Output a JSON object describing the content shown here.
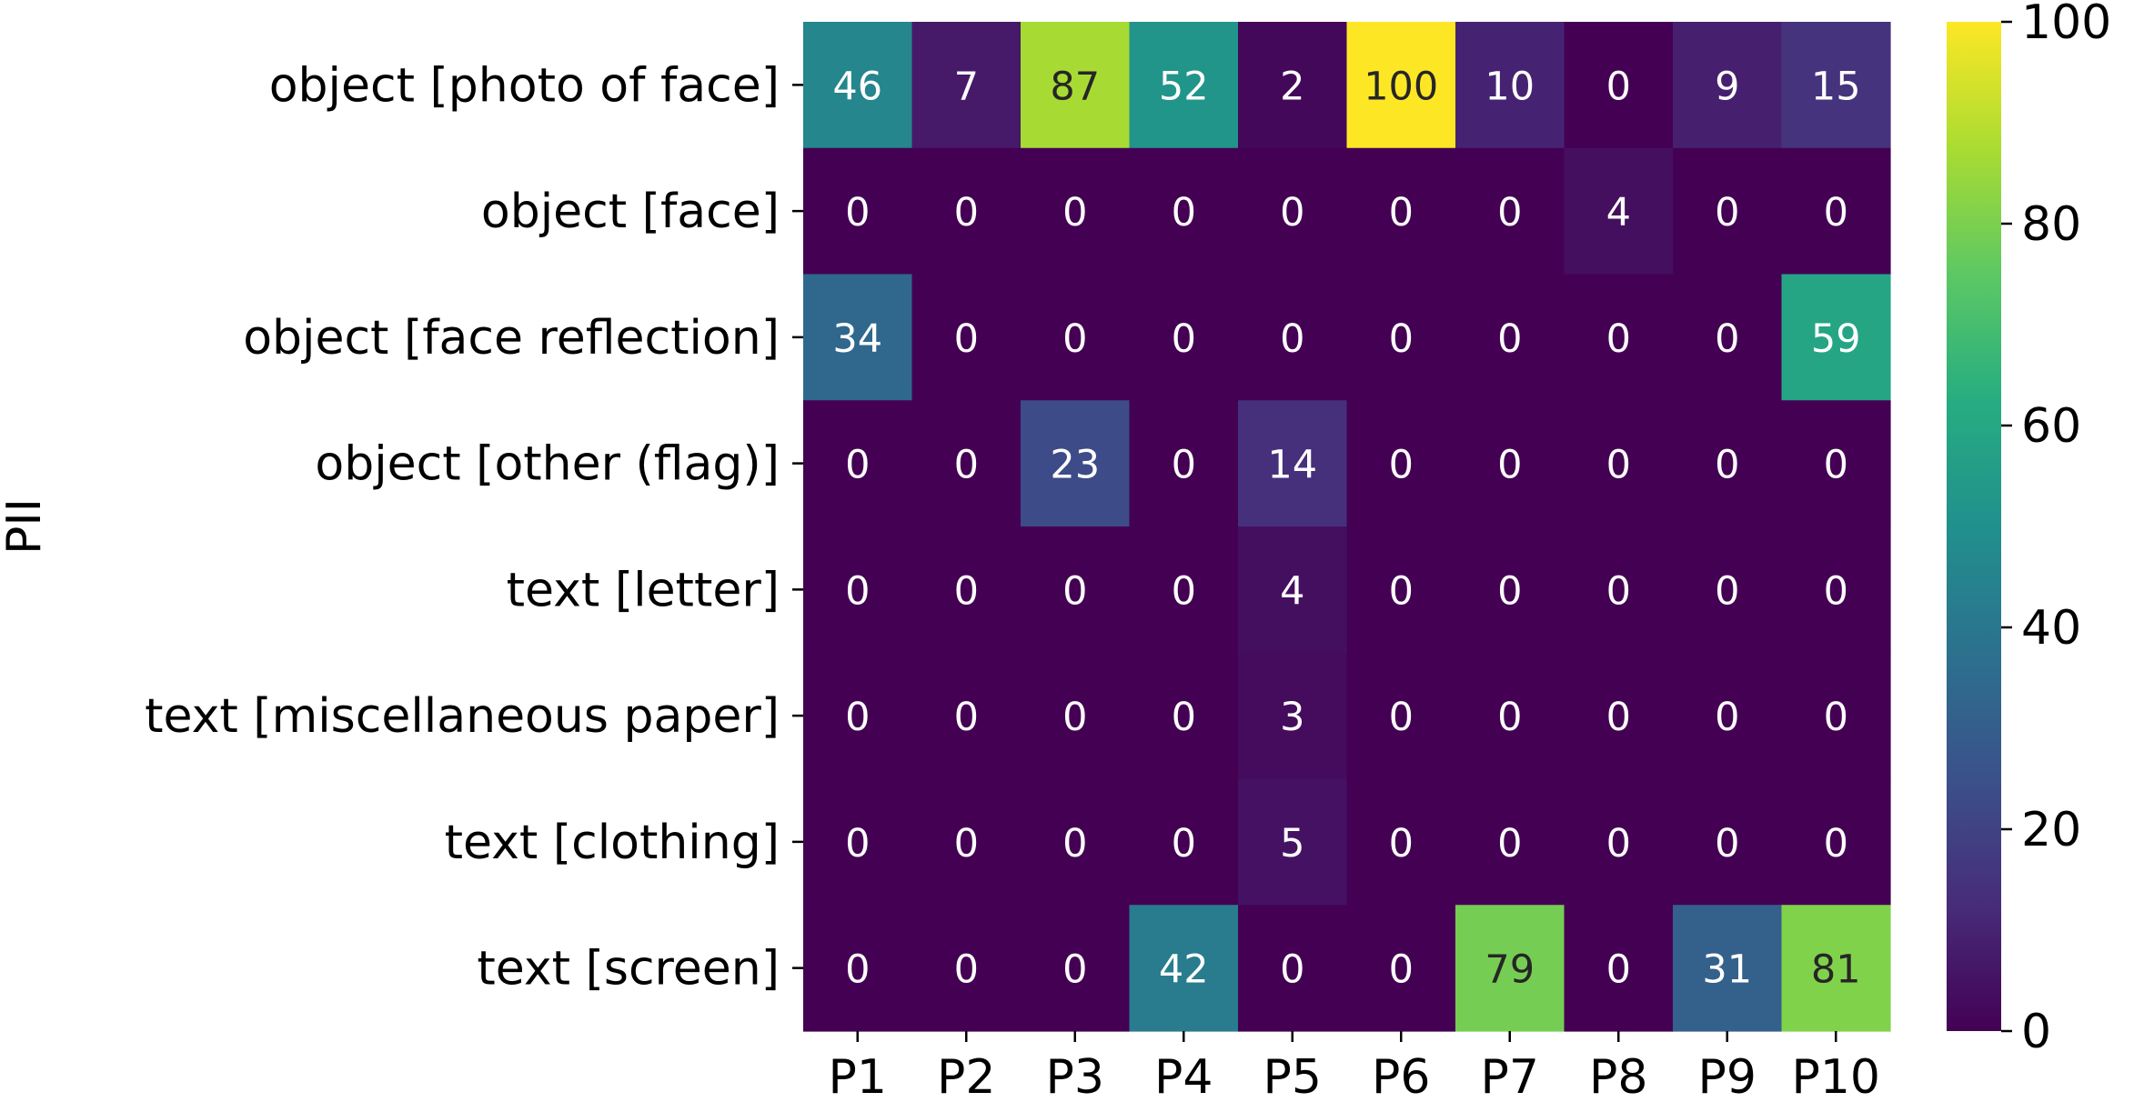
{
  "chart_data": {
    "type": "heatmap",
    "title": "",
    "xlabel": "",
    "ylabel": "PII",
    "x_categories": [
      "P1",
      "P2",
      "P3",
      "P4",
      "P5",
      "P6",
      "P7",
      "P8",
      "P9",
      "P10"
    ],
    "y_categories": [
      "object [photo of face]",
      "object [face]",
      "object [face reflection]",
      "object [other (flag)]",
      "text [letter]",
      "text [miscellaneous paper]",
      "text [clothing]",
      "text [screen]"
    ],
    "values": [
      [
        46,
        7,
        87,
        52,
        2,
        100,
        10,
        0,
        9,
        15
      ],
      [
        0,
        0,
        0,
        0,
        0,
        0,
        0,
        4,
        0,
        0
      ],
      [
        34,
        0,
        0,
        0,
        0,
        0,
        0,
        0,
        0,
        59
      ],
      [
        0,
        0,
        23,
        0,
        14,
        0,
        0,
        0,
        0,
        0
      ],
      [
        0,
        0,
        0,
        0,
        4,
        0,
        0,
        0,
        0,
        0
      ],
      [
        0,
        0,
        0,
        0,
        3,
        0,
        0,
        0,
        0,
        0
      ],
      [
        0,
        0,
        0,
        0,
        5,
        0,
        0,
        0,
        0,
        0
      ],
      [
        0,
        0,
        0,
        42,
        0,
        0,
        79,
        0,
        31,
        81
      ]
    ],
    "colormap": "viridis",
    "vmin": 0,
    "vmax": 100,
    "colorbar_ticks": [
      0,
      20,
      40,
      60,
      80,
      100
    ]
  }
}
